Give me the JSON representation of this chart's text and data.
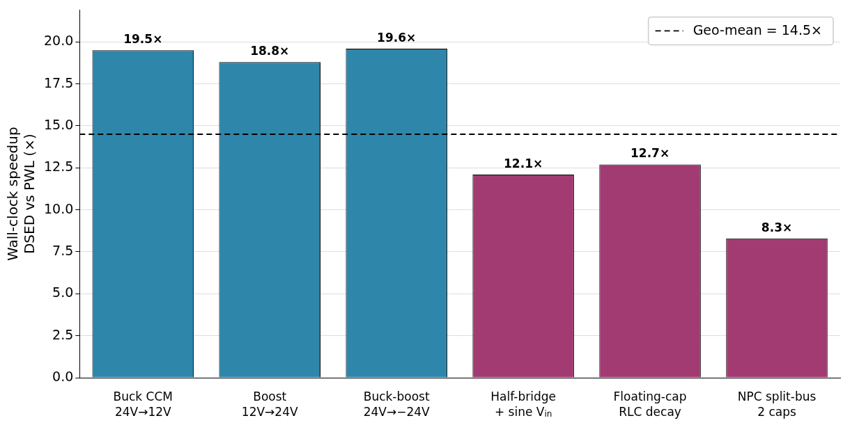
{
  "chart_data": {
    "type": "bar",
    "ylabel": "Wall-clock speedup\nDSED vs PWL (×)",
    "categories": [
      "Buck CCM\n24V→12V",
      "Boost\n12V→24V",
      "Buck-boost\n24V→−24V",
      "Half-bridge\n+ sine V$_{in}$",
      "Floating-cap\nRLC decay",
      "NPC split-bus\n2 caps"
    ],
    "values": [
      19.5,
      18.8,
      19.6,
      12.1,
      12.7,
      8.3
    ],
    "colors": [
      "#2e86ab",
      "#2e86ab",
      "#2e86ab",
      "#a23b72",
      "#a23b72",
      "#a23b72"
    ],
    "value_labels": [
      "19.5×",
      "18.8×",
      "19.6×",
      "12.1×",
      "12.7×",
      "8.3×"
    ],
    "ylim": [
      0,
      21.9
    ],
    "yticks": [
      {
        "value": 0,
        "label": "0.0"
      },
      {
        "value": 2.5,
        "label": "2.5"
      },
      {
        "value": 5,
        "label": "5.0"
      },
      {
        "value": 7.5,
        "label": "7.5"
      },
      {
        "value": 10,
        "label": "10.0"
      },
      {
        "value": 12.5,
        "label": "12.5"
      },
      {
        "value": 15,
        "label": "15.0"
      },
      {
        "value": 17.5,
        "label": "17.5"
      },
      {
        "value": 20,
        "label": "20.0"
      }
    ],
    "grid": "y",
    "legend": "top right",
    "ref_lines": [
      {
        "axis": "y",
        "value": 14.5,
        "label": "Geo-mean = 14.5×",
        "color": "#000000",
        "line_style": "dashed"
      }
    ]
  }
}
